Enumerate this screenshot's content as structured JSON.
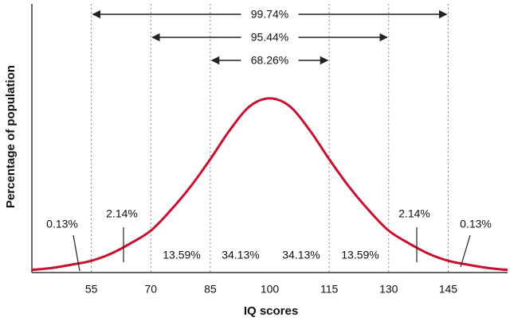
{
  "chart_data": {
    "type": "line",
    "xlabel": "IQ scores",
    "ylabel": "Percentage of population",
    "x": [
      40,
      45,
      50,
      55,
      60,
      65,
      70,
      75,
      80,
      85,
      90,
      95,
      100,
      105,
      110,
      115,
      120,
      125,
      130,
      135,
      140,
      145,
      150,
      155,
      160
    ],
    "values": [
      0.0004,
      0.0007,
      0.0012,
      0.0018,
      0.0029,
      0.0045,
      0.0064,
      0.0095,
      0.0131,
      0.0173,
      0.0218,
      0.0254,
      0.0266,
      0.0254,
      0.0218,
      0.0173,
      0.0131,
      0.0095,
      0.0064,
      0.0045,
      0.0029,
      0.0018,
      0.0012,
      0.0007,
      0.0004
    ],
    "color": "#c8102e",
    "xlim": [
      40,
      160
    ],
    "ylim": [
      0,
      0.041
    ],
    "xticks": [
      55,
      70,
      85,
      100,
      115,
      130,
      145
    ],
    "ranges": {
      "from": [
        55,
        70,
        85
      ],
      "to": [
        145,
        130,
        115
      ],
      "values": [
        99.74,
        95.44,
        68.26
      ],
      "value_labels": [
        "99.74%",
        "95.44%",
        "68.26%"
      ]
    },
    "segments": {
      "values": [
        0.13,
        2.14,
        13.59,
        34.13,
        34.13,
        13.59,
        2.14,
        0.13
      ],
      "value_labels": [
        "0.13%",
        "2.14%",
        "13.59%",
        "34.13%",
        "34.13%",
        "13.59%",
        "2.14%",
        "0.13%"
      ]
    }
  }
}
